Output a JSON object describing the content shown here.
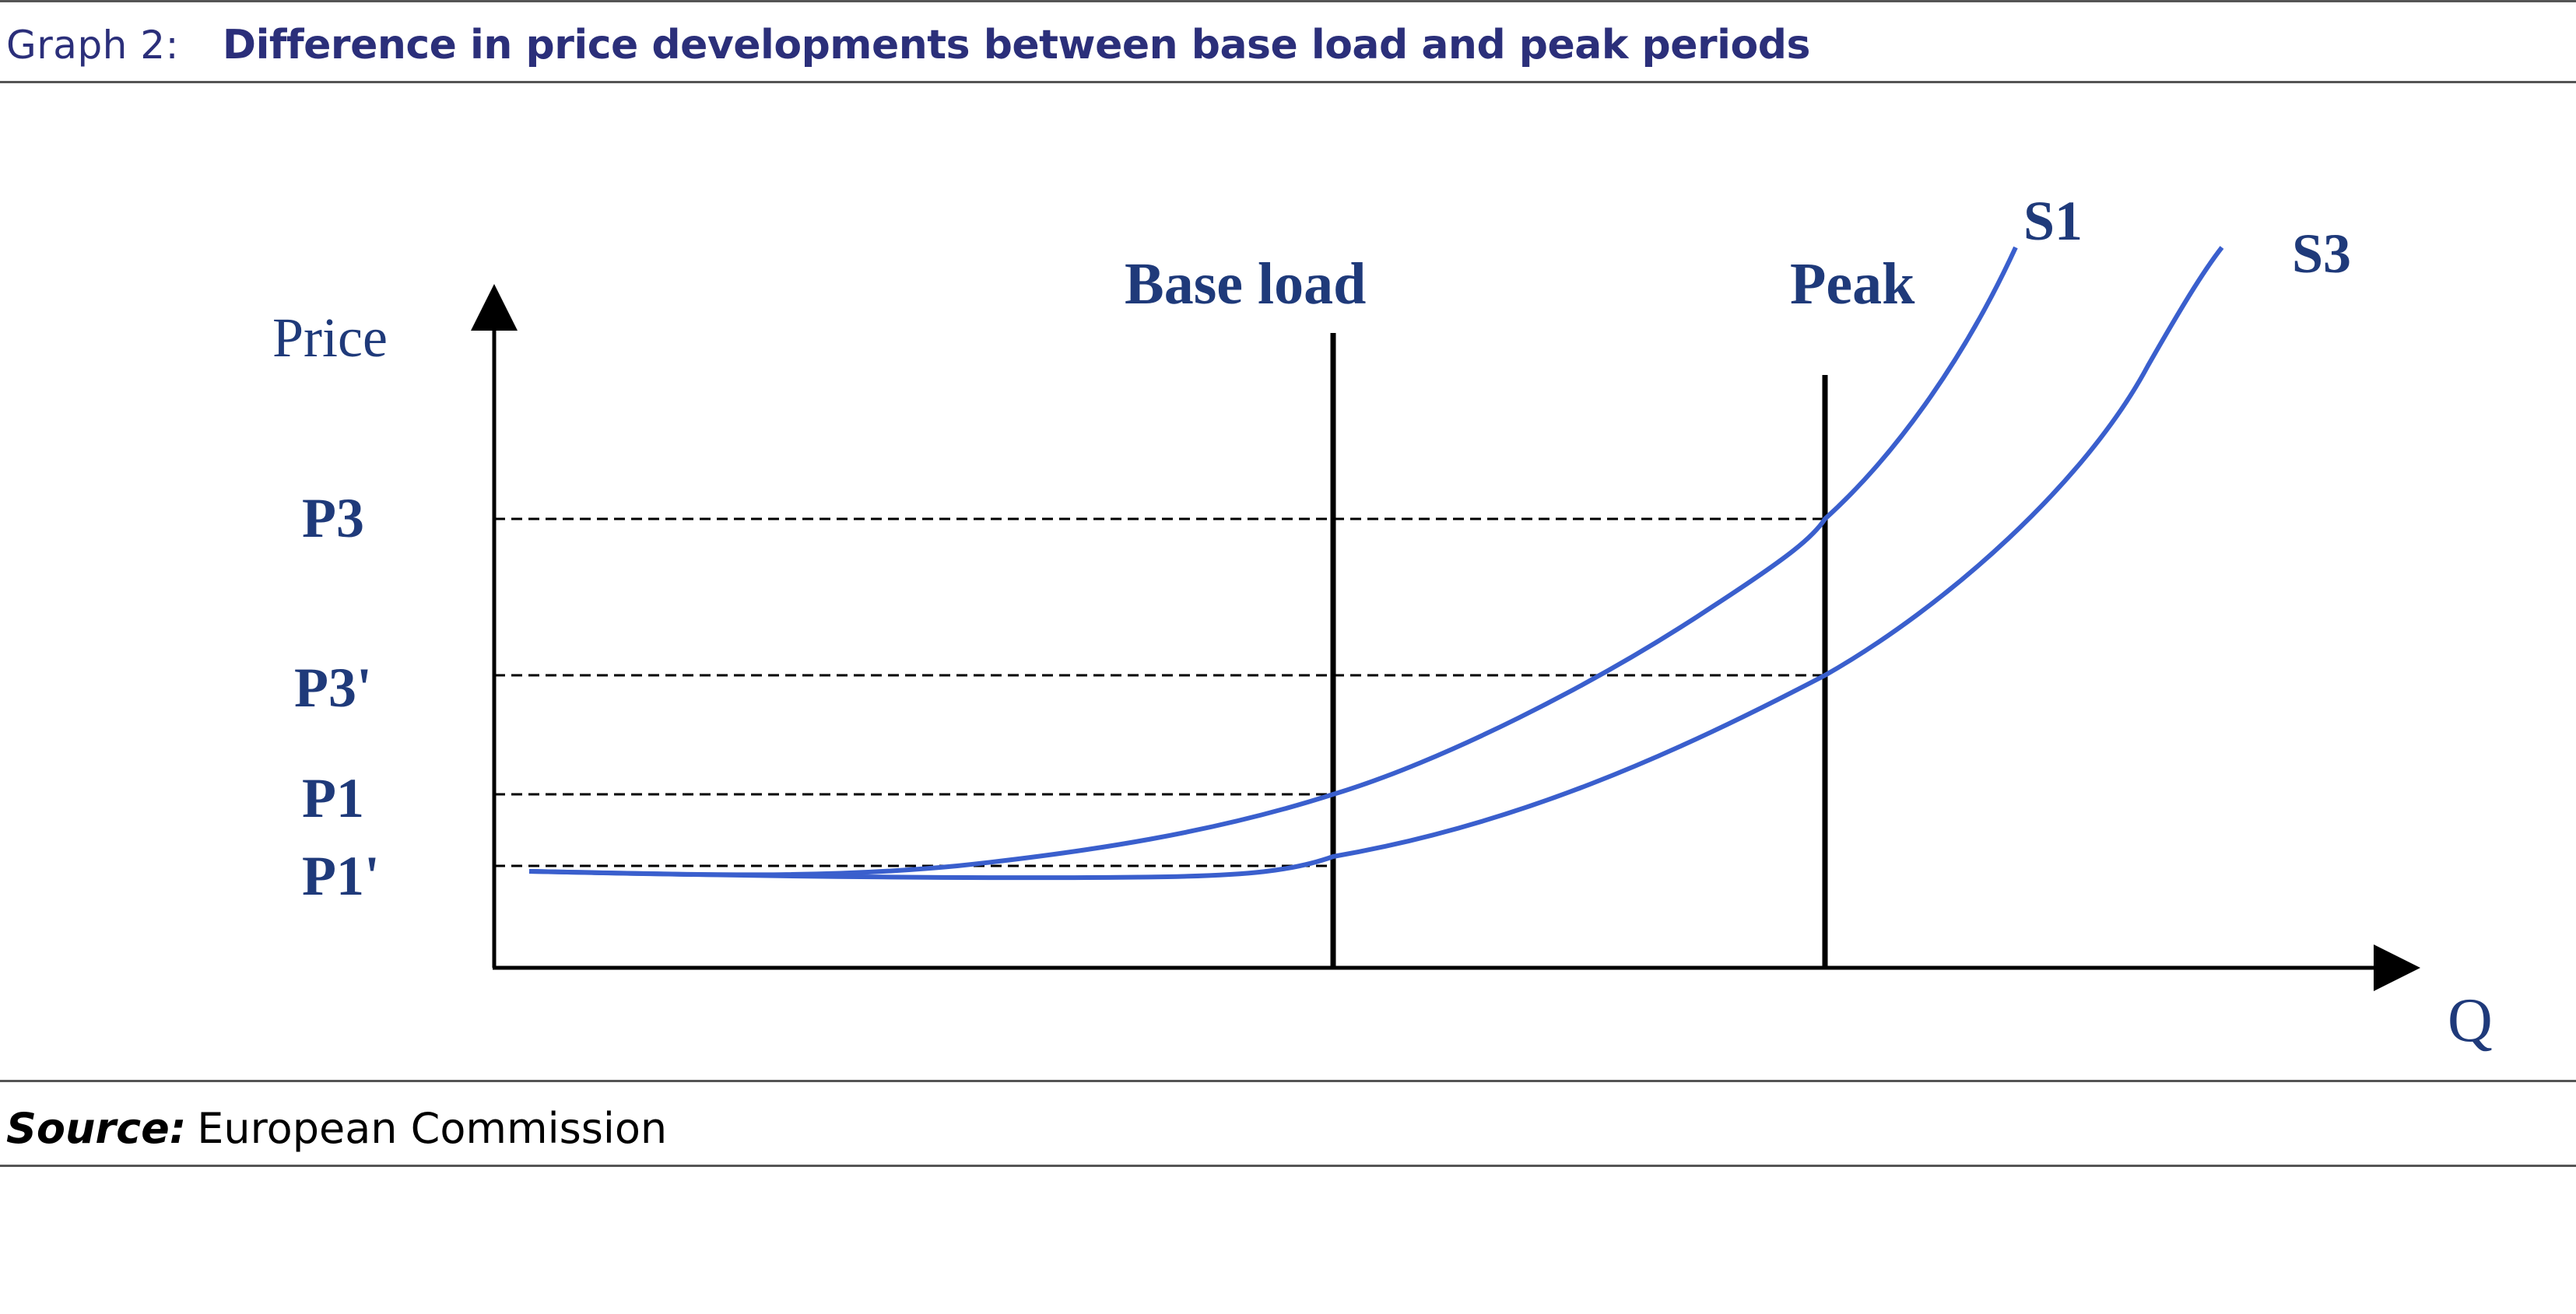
{
  "header": {
    "graph_number": "Graph 2:",
    "title": "Difference in price developments between base load and peak periods"
  },
  "diagram": {
    "y_axis_label": "Price",
    "x_axis_label": "Q",
    "price_levels": [
      "P3",
      "P3'",
      "P1",
      "P1'"
    ],
    "vertical_markers": [
      "Base load",
      "Peak"
    ],
    "curves": [
      "S1",
      "S3"
    ],
    "colors": {
      "curve": "#3a5fcd",
      "label": "#1f3a7a",
      "axis": "#000000"
    }
  },
  "footer": {
    "source_label": "Source:",
    "source_text": "European Commission"
  }
}
